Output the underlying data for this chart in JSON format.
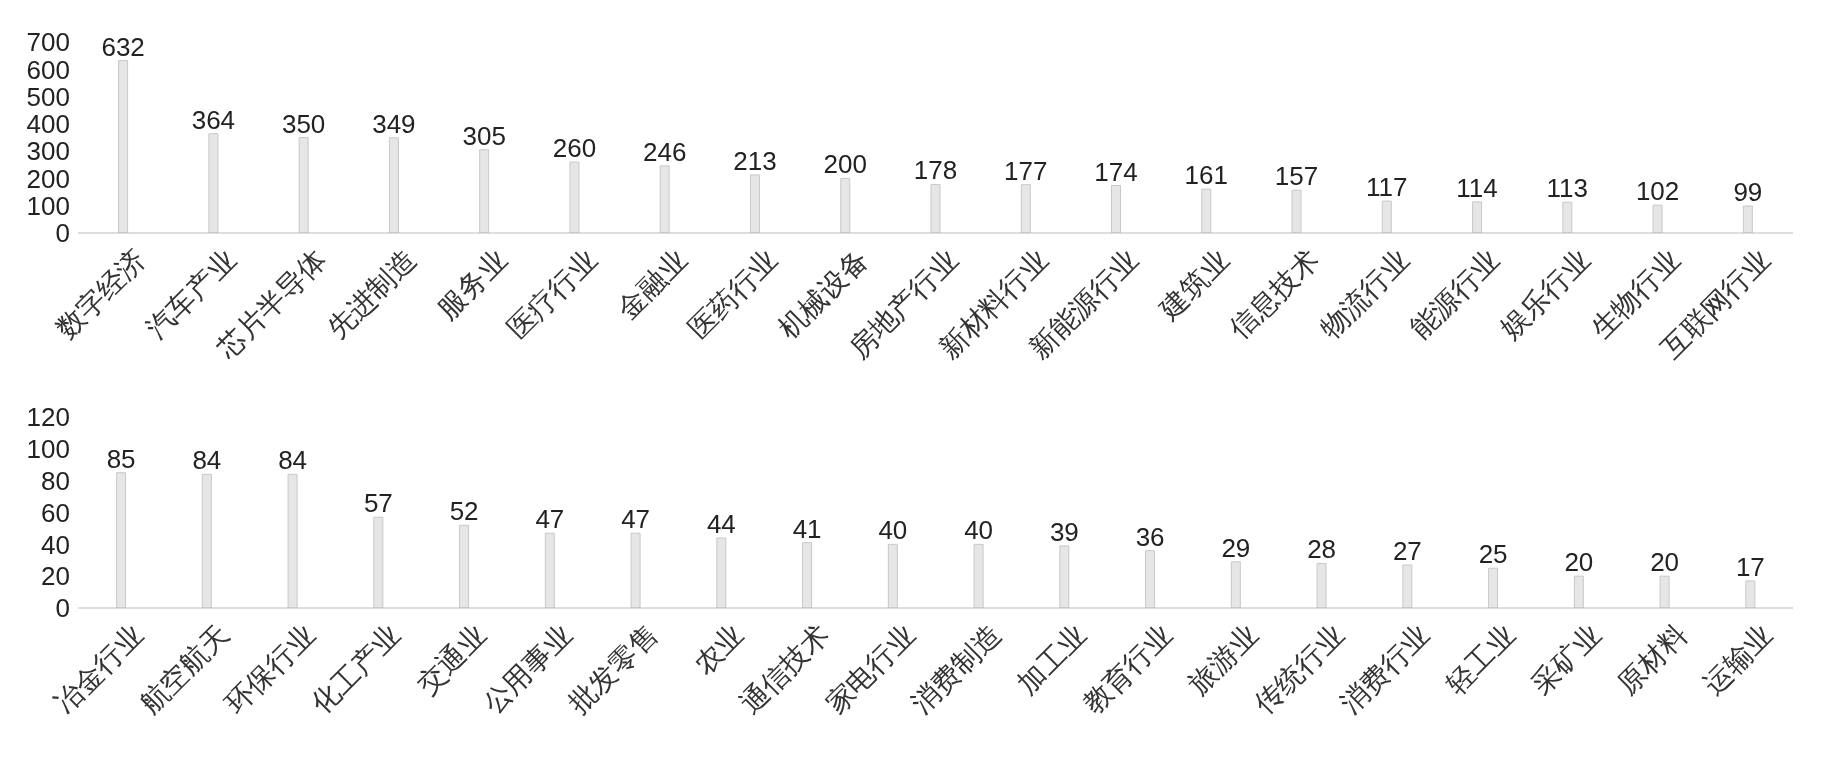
{
  "chart_data": [
    {
      "type": "bar",
      "categories": [
        "数字经济",
        "汽车产业",
        "芯片半导体",
        "先进制造",
        "服务业",
        "医疗行业",
        "金融业",
        "医药行业",
        "机械设备",
        "房地产行业",
        "新材料行业",
        "新能源行业",
        "建筑业",
        "信息技术",
        "物流行业",
        "能源行业",
        "娱乐行业",
        "生物行业",
        "互联网行业"
      ],
      "values": [
        632,
        364,
        350,
        349,
        305,
        260,
        246,
        213,
        200,
        178,
        177,
        174,
        161,
        157,
        117,
        114,
        113,
        102,
        99
      ],
      "color": "#e6e6e6",
      "ylim": [
        0,
        700
      ],
      "yticks": [
        0,
        100,
        200,
        300,
        400,
        500,
        600,
        700
      ],
      "grid": false,
      "legend": false,
      "data_labels": true
    },
    {
      "type": "bar",
      "categories": [
        "冶金行业",
        "航空航天",
        "环保行业",
        "化工产业",
        "交通业",
        "公用事业",
        "批发零售",
        "农业",
        "通信技术",
        "家电行业",
        "消费制造",
        "加工业",
        "教育行业",
        "旅游业",
        "传统行业",
        "消费行业",
        "轻工业",
        "采矿业",
        "原材料",
        "运输业"
      ],
      "values": [
        85,
        84,
        84,
        57,
        52,
        47,
        47,
        44,
        41,
        40,
        40,
        39,
        36,
        29,
        28,
        27,
        25,
        20,
        20,
        17
      ],
      "color": "#e6e6e6",
      "ylim": [
        0,
        120
      ],
      "yticks": [
        0,
        20,
        40,
        60,
        80,
        100,
        120
      ],
      "grid": false,
      "legend": false,
      "data_labels": true
    }
  ]
}
